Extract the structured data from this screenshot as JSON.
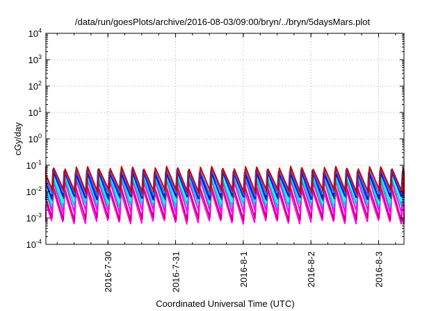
{
  "chart_data": {
    "type": "line",
    "title": "/data/run/goesPlots/archive/2016-08-03/09:00/bryn/../bryn/5daysMars.plot",
    "xlabel": "Coordinated Universal Time (UTC)",
    "ylabel": "cGy/day",
    "yscale": "log",
    "ylim": [
      0.0001,
      10000
    ],
    "xlim": [
      "2016-07-29T02:00",
      "2016-08-03T09:00"
    ],
    "grid": true,
    "yticks": [
      {
        "value": 0.0001,
        "base": "10",
        "exp": "-4"
      },
      {
        "value": 0.001,
        "base": "10",
        "exp": "-3"
      },
      {
        "value": 0.01,
        "base": "10",
        "exp": "-2"
      },
      {
        "value": 0.1,
        "base": "10",
        "exp": "-1"
      },
      {
        "value": 1,
        "base": "10",
        "exp": "0"
      },
      {
        "value": 10,
        "base": "10",
        "exp": "1"
      },
      {
        "value": 100,
        "base": "10",
        "exp": "2"
      },
      {
        "value": 1000,
        "base": "10",
        "exp": "3"
      },
      {
        "value": 10000,
        "base": "10",
        "exp": "4"
      }
    ],
    "xticks": [
      {
        "value": "2016-07-30T00:00",
        "label": "2016-7-30"
      },
      {
        "value": "2016-07-31T00:00",
        "label": "2016-7-31"
      },
      {
        "value": "2016-08-01T00:00",
        "label": "2016-8-1"
      },
      {
        "value": "2016-08-02T00:00",
        "label": "2016-8-2"
      },
      {
        "value": "2016-08-03T00:00",
        "label": "2016-8-3"
      }
    ],
    "cycle_hours": 4,
    "series": [
      {
        "color": "#ff00ff",
        "peak": 0.012,
        "trough": 0.0007
      },
      {
        "color": "#cc0066",
        "peak": 0.015,
        "trough": 0.0009
      },
      {
        "color": "#ff00ff",
        "peak": 0.025,
        "trough": 0.0015
      },
      {
        "color": "#00cccc",
        "peak": 0.04,
        "trough": 0.003
      },
      {
        "color": "#00ffff",
        "peak": 0.05,
        "trough": 0.004
      },
      {
        "color": "#008000",
        "peak": 0.055,
        "trough": 0.0055
      },
      {
        "color": "#0000ff",
        "peak": 0.06,
        "trough": 0.006
      },
      {
        "color": "#3366ff",
        "peak": 0.07,
        "trough": 0.008
      },
      {
        "color": "#cc0000",
        "peak": 0.08,
        "trough": 0.01
      }
    ]
  }
}
